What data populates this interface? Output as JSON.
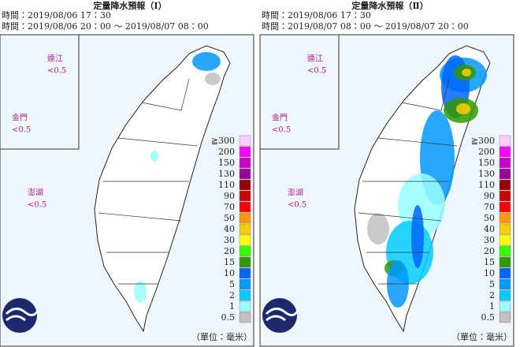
{
  "panels": [
    {
      "title": "定量降水預報（Ⅰ）",
      "issued": "時間：2019/08/06 17：30",
      "period": "時間：2019/08/06 20：00 ～ 2019/08/07 08：00",
      "islands": [
        {
          "name": "連江",
          "value": "<0.5"
        },
        {
          "name": "金門",
          "value": "<0.5"
        },
        {
          "name": "澎湖",
          "value": "<0.5"
        }
      ],
      "unit": "（單位：毫米）"
    },
    {
      "title": "定量降水預報（Ⅱ）",
      "issued": "時間：2019/08/06 17：30",
      "period": "時間：2019/08/07 08：00 ～ 2019/08/07 20：00",
      "islands": [
        {
          "name": "連江",
          "value": "<0.5"
        },
        {
          "name": "金門",
          "value": "<0.5"
        },
        {
          "name": "澎湖",
          "value": "<0.5"
        }
      ],
      "unit": "（單位：毫米）"
    }
  ],
  "legend": [
    {
      "label": "≧300",
      "color": "#ffccff"
    },
    {
      "label": "200",
      "color": "#ff00ff"
    },
    {
      "label": "150",
      "color": "#cc00cc"
    },
    {
      "label": "130",
      "color": "#990099"
    },
    {
      "label": "110",
      "color": "#990000"
    },
    {
      "label": "90",
      "color": "#cc0000"
    },
    {
      "label": "70",
      "color": "#ff0000"
    },
    {
      "label": "50",
      "color": "#ff9900"
    },
    {
      "label": "40",
      "color": "#ffcc00"
    },
    {
      "label": "30",
      "color": "#ffff00"
    },
    {
      "label": "20",
      "color": "#33ff00"
    },
    {
      "label": "15",
      "color": "#339900"
    },
    {
      "label": "10",
      "color": "#0066ff"
    },
    {
      "label": "5",
      "color": "#0099ff"
    },
    {
      "label": "2",
      "color": "#00ccff"
    },
    {
      "label": "1",
      "color": "#99ffff"
    },
    {
      "label": "0.5",
      "color": "#c1c1c1"
    }
  ]
}
